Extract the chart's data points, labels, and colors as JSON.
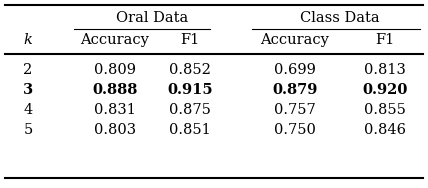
{
  "k_values": [
    "2",
    "3",
    "4",
    "5"
  ],
  "oral_accuracy": [
    "0.809",
    "0.888",
    "0.831",
    "0.803"
  ],
  "oral_f1": [
    "0.852",
    "0.915",
    "0.875",
    "0.851"
  ],
  "class_accuracy": [
    "0.699",
    "0.879",
    "0.757",
    "0.750"
  ],
  "class_f1": [
    "0.813",
    "0.920",
    "0.855",
    "0.846"
  ],
  "bold_row": 1,
  "col_header_1": "Oral Data",
  "col_header_2": "Class Data",
  "sub_headers": [
    "Accuracy",
    "F1",
    "Accuracy",
    "F1"
  ],
  "row_header": "k",
  "bg_color": "#ffffff",
  "text_color": "#000000",
  "font_size": 10.5,
  "line_color": "#000000"
}
